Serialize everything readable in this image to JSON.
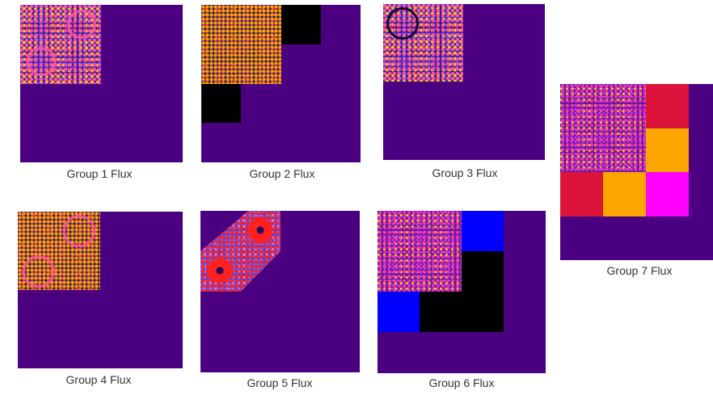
{
  "panels": [
    {
      "caption": "Group 1 Flux"
    },
    {
      "caption": "Group 2 Flux"
    },
    {
      "caption": "Group 3 Flux"
    },
    {
      "caption": "Group 4 Flux"
    },
    {
      "caption": "Group 5 Flux"
    },
    {
      "caption": "Group 6 Flux"
    },
    {
      "caption": "Group 7 Flux"
    }
  ],
  "colors": {
    "background_fill": "#4b0082",
    "black_block": "#000000",
    "blue_block": "#0000ff",
    "crimson_block": "#dc143c",
    "orange_block": "#ffa500",
    "magenta_block": "#ff00ff"
  }
}
